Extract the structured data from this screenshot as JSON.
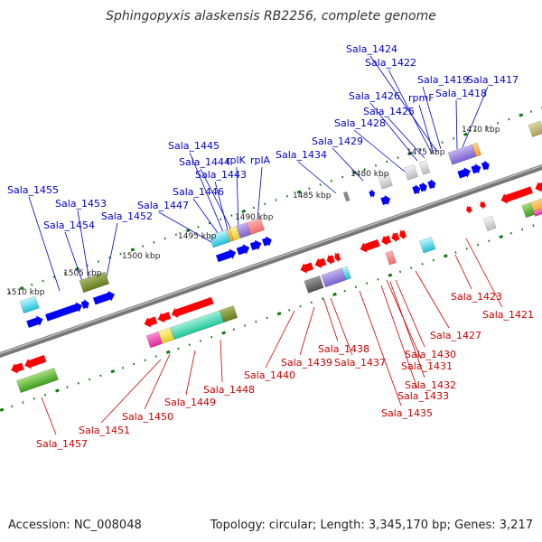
{
  "title": "Sphingopyxis alaskensis RB2256, complete genome",
  "accession": "Accession: NC_008048",
  "summary": "Topology: circular; Length: 3,345,170 bp; Genes: 3,217",
  "colors": {
    "forward_gene": "#0000ff",
    "reverse_gene": "#ff0000",
    "top_label": "#0000cc",
    "bottom_label": "#cc0000",
    "backbone": "#888888",
    "tick": "#117711"
  },
  "scale_labels": [
    "1470 kbp",
    "1475 kbp",
    "1480 kbp",
    "1485 kbp",
    "1490 kbp",
    "1495 kbp",
    "1500 kbp",
    "1505 kbp",
    "1510 kbp"
  ],
  "top_labels": [
    "Sala_1424",
    "Sala_1422",
    "Sala_1419",
    "rpmF",
    "Sala_1418",
    "Sala_1417",
    "Sala_1426",
    "Sala_1425",
    "Sala_1428",
    "Sala_1429",
    "Sala_1434",
    "Sala_1445",
    "Sala_1444",
    "rplK",
    "rplA",
    "Sala_1443",
    "Sala_1446",
    "Sala_1447",
    "Sala_1455",
    "Sala_1453",
    "Sala_1454",
    "Sala_1452"
  ],
  "bottom_labels": [
    "Sala_1423",
    "Sala_1421",
    "Sala_1427",
    "Sala_1430",
    "Sala_1431",
    "Sala_1432",
    "Sala_1433",
    "Sala_1435",
    "Sala_1438",
    "Sala_1437",
    "Sala_1439",
    "Sala_1440",
    "Sala_1448",
    "Sala_1449",
    "Sala_1450",
    "Sala_1451",
    "Sala_1457"
  ]
}
